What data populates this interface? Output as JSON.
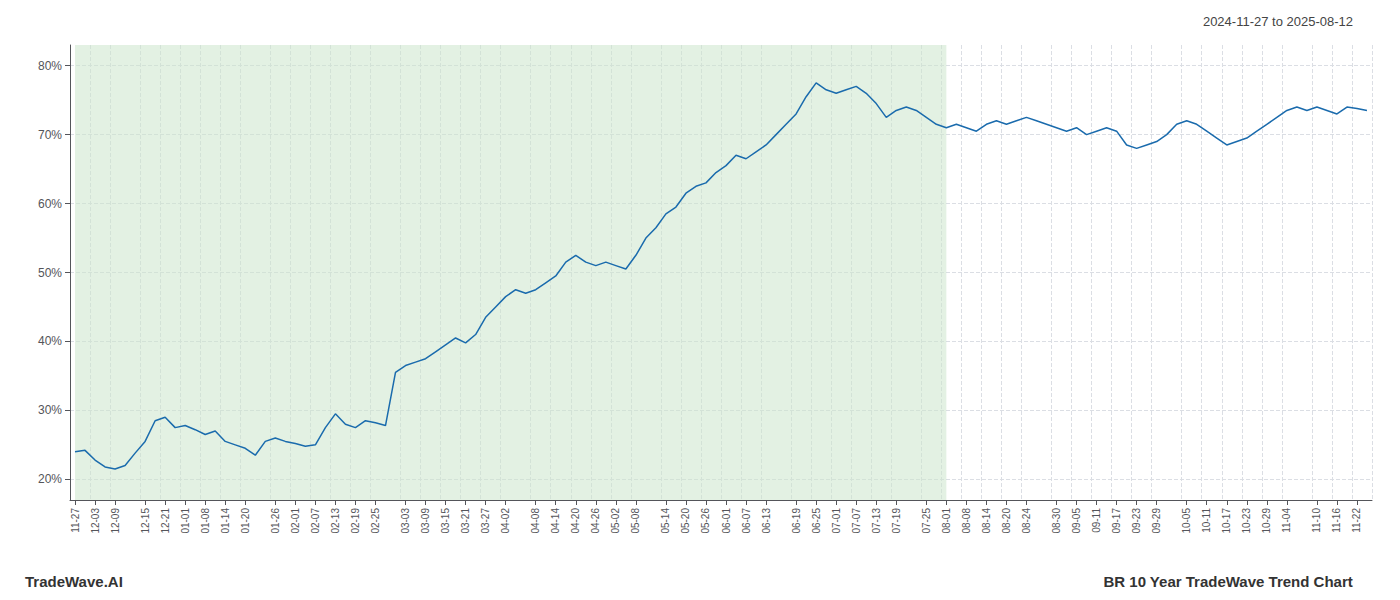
{
  "chart_data": {
    "type": "line",
    "title": "BR 10 Year TradeWave Trend Chart",
    "subtitle": "2024-11-27 to 2025-08-12",
    "annotations": [
      "TradeWave.AI"
    ],
    "color": "#1a6bad",
    "grid": true,
    "shade": {
      "to": "08-01",
      "color": "#cce5cc"
    },
    "ylim": [
      17,
      83
    ],
    "yticks": [
      {
        "value": 20,
        "label": "20%"
      },
      {
        "value": 30,
        "label": "30%"
      },
      {
        "value": 40,
        "label": "40%"
      },
      {
        "value": 50,
        "label": "50%"
      },
      {
        "value": 60,
        "label": "60%"
      },
      {
        "value": 70,
        "label": "70%"
      },
      {
        "value": 80,
        "label": "80%"
      }
    ],
    "categories": [
      "11-27",
      null,
      "12-03",
      null,
      "12-09",
      null,
      null,
      "12-15",
      null,
      "12-21",
      null,
      "01-01",
      null,
      "01-08",
      null,
      "01-14",
      null,
      "01-20",
      null,
      null,
      "01-26",
      null,
      "02-01",
      null,
      "02-07",
      null,
      "02-13",
      null,
      "02-19",
      null,
      "02-25",
      null,
      null,
      "03-03",
      null,
      "03-09",
      null,
      "03-15",
      null,
      "03-21",
      null,
      "03-27",
      null,
      "04-02",
      null,
      null,
      "04-08",
      null,
      "04-14",
      null,
      "04-20",
      null,
      "04-26",
      null,
      "05-02",
      null,
      "05-08",
      null,
      null,
      "05-14",
      null,
      "05-20",
      null,
      "05-26",
      null,
      "06-01",
      null,
      "06-07",
      null,
      "06-13",
      null,
      null,
      "06-19",
      null,
      "06-25",
      null,
      "07-01",
      null,
      "07-07",
      null,
      "07-13",
      null,
      "07-19",
      null,
      null,
      "07-25",
      null,
      "08-01",
      null,
      "08-08",
      null,
      "08-14",
      null,
      "08-20",
      null,
      "08-24",
      null,
      null,
      "08-30",
      null,
      "09-05",
      null,
      "09-11",
      null,
      "09-17",
      null,
      "09-23",
      null,
      "09-29",
      null,
      null,
      "10-05",
      null,
      "10-11",
      null,
      "10-17",
      null,
      "10-23",
      null,
      "10-29",
      null,
      "11-04",
      null,
      null,
      "11-10",
      null,
      "11-16",
      null,
      "11-22",
      null
    ],
    "values": [
      24.0,
      24.2,
      22.8,
      21.8,
      21.5,
      22.0,
      23.8,
      25.5,
      28.5,
      29.0,
      27.5,
      27.8,
      27.2,
      26.5,
      27.0,
      25.5,
      25.0,
      24.5,
      23.5,
      25.5,
      26.0,
      25.5,
      25.2,
      24.8,
      25.0,
      27.5,
      29.5,
      28.0,
      27.5,
      28.5,
      28.2,
      27.8,
      35.5,
      36.5,
      37.0,
      37.5,
      38.5,
      39.5,
      40.5,
      39.8,
      41.0,
      43.5,
      45.0,
      46.5,
      47.5,
      47.0,
      47.5,
      48.5,
      49.5,
      51.5,
      52.5,
      51.5,
      51.0,
      51.5,
      51.0,
      50.5,
      52.5,
      55.0,
      56.5,
      58.5,
      59.5,
      61.5,
      62.5,
      63.0,
      64.5,
      65.5,
      67.0,
      66.5,
      67.5,
      68.5,
      70.0,
      71.5,
      73.0,
      75.5,
      77.5,
      76.5,
      76.0,
      76.5,
      77.0,
      76.0,
      74.5,
      72.5,
      73.5,
      74.0,
      73.5,
      72.5,
      71.5,
      71.0,
      71.5,
      71.0,
      70.5,
      71.5,
      72.0,
      71.5,
      72.0,
      72.5,
      72.0,
      71.5,
      71.0,
      70.5,
      71.0,
      70.0,
      70.5,
      71.0,
      70.5,
      68.5,
      68.0,
      68.5,
      69.0,
      70.0,
      71.5,
      72.0,
      71.5,
      70.5,
      69.5,
      68.5,
      69.0,
      69.5,
      70.5,
      71.5,
      72.5,
      73.5,
      74.0,
      73.5,
      74.0,
      73.5,
      73.0,
      74.0,
      73.8,
      73.5
    ]
  }
}
